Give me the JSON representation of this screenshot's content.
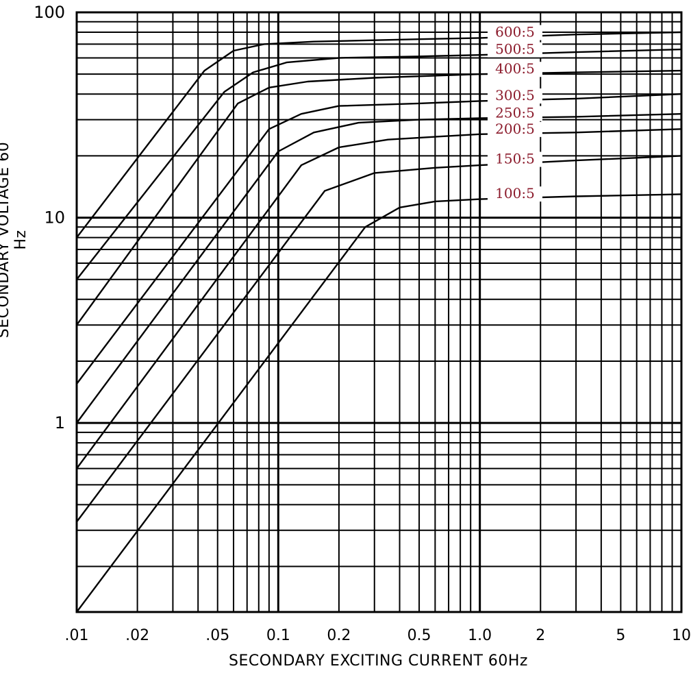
{
  "chart_data": {
    "type": "line",
    "xlabel": "SECONDARY  EXCITING  CURRENT  60Hz",
    "ylabel": "SECONDARY  VOLTAGE  60  Hz",
    "x_scale": "log",
    "y_scale": "log",
    "xlim": [
      0.01,
      10
    ],
    "ylim": [
      0.12,
      100
    ],
    "grid": true,
    "x_tick_labels": [
      {
        "value": 0.01,
        "label": ".01"
      },
      {
        "value": 0.02,
        "label": ".02"
      },
      {
        "value": 0.05,
        "label": ".05"
      },
      {
        "value": 0.1,
        "label": "0.1"
      },
      {
        "value": 0.2,
        "label": "0.2"
      },
      {
        "value": 0.5,
        "label": "0.5"
      },
      {
        "value": 1,
        "label": "1.0"
      },
      {
        "value": 2,
        "label": "2"
      },
      {
        "value": 5,
        "label": "5"
      },
      {
        "value": 10,
        "label": "10"
      }
    ],
    "y_tick_labels": [
      {
        "value": 100,
        "label": "100"
      },
      {
        "value": 10,
        "label": "10"
      },
      {
        "value": 1,
        "label": "1"
      }
    ],
    "series_label_color": "#8b1a2b",
    "line_color": "#000000",
    "series": [
      {
        "name": "600:5",
        "points": [
          [
            0.01,
            8.0
          ],
          [
            0.043,
            52
          ],
          [
            0.06,
            65
          ],
          [
            0.085,
            70
          ],
          [
            0.15,
            72
          ],
          [
            0.5,
            74
          ],
          [
            1.0,
            75
          ],
          [
            3.0,
            78
          ],
          [
            10,
            80
          ]
        ]
      },
      {
        "name": "500:5",
        "points": [
          [
            0.01,
            5.0
          ],
          [
            0.054,
            41
          ],
          [
            0.075,
            51
          ],
          [
            0.11,
            57
          ],
          [
            0.2,
            60
          ],
          [
            0.5,
            61
          ],
          [
            1.0,
            62
          ],
          [
            3.0,
            64
          ],
          [
            10,
            66
          ]
        ]
      },
      {
        "name": "400:5",
        "points": [
          [
            0.01,
            3.0
          ],
          [
            0.063,
            36
          ],
          [
            0.09,
            43
          ],
          [
            0.14,
            46
          ],
          [
            0.3,
            48
          ],
          [
            1.0,
            50
          ],
          [
            3.0,
            51
          ],
          [
            10,
            52
          ]
        ]
      },
      {
        "name": "300:5",
        "points": [
          [
            0.01,
            1.55
          ],
          [
            0.09,
            27
          ],
          [
            0.13,
            32
          ],
          [
            0.2,
            35
          ],
          [
            0.5,
            36
          ],
          [
            1.0,
            37
          ],
          [
            3.0,
            38
          ],
          [
            10,
            40
          ]
        ]
      },
      {
        "name": "250:5",
        "points": [
          [
            0.01,
            1.0
          ],
          [
            0.1,
            21
          ],
          [
            0.15,
            26
          ],
          [
            0.25,
            29
          ],
          [
            0.5,
            30
          ],
          [
            1.0,
            30.5
          ],
          [
            3.0,
            31
          ],
          [
            10,
            32
          ]
        ]
      },
      {
        "name": "200:5",
        "points": [
          [
            0.01,
            0.6
          ],
          [
            0.13,
            18
          ],
          [
            0.2,
            22
          ],
          [
            0.35,
            24
          ],
          [
            0.7,
            25
          ],
          [
            1.0,
            25.5
          ],
          [
            3.0,
            26
          ],
          [
            10,
            27
          ]
        ]
      },
      {
        "name": "150:5",
        "points": [
          [
            0.01,
            0.33
          ],
          [
            0.17,
            13.5
          ],
          [
            0.3,
            16.5
          ],
          [
            0.6,
            17.5
          ],
          [
            1.0,
            18
          ],
          [
            3.0,
            19
          ],
          [
            10,
            20
          ]
        ]
      },
      {
        "name": "100:5",
        "points": [
          [
            0.01,
            0.12
          ],
          [
            0.27,
            9.0
          ],
          [
            0.4,
            11.2
          ],
          [
            0.6,
            12
          ],
          [
            1.0,
            12.3
          ],
          [
            3.0,
            12.7
          ],
          [
            10,
            13
          ]
        ]
      }
    ]
  }
}
